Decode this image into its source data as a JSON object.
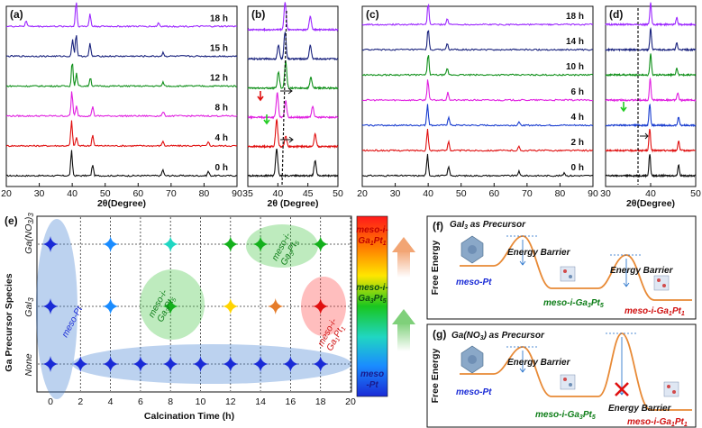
{
  "chart_data": [
    {
      "panel": "(a)",
      "type": "line",
      "title": "",
      "xlabel": "2θ(Degree)",
      "ylabel": "",
      "xlim": [
        20,
        90
      ],
      "xticks": [
        20,
        30,
        40,
        50,
        60,
        70,
        80,
        90
      ],
      "series": [
        {
          "name": "0 h",
          "color": "#111111",
          "peaks": [
            [
              39.8,
              1.0
            ],
            [
              46.2,
              0.45
            ],
            [
              67.5,
              0.25
            ],
            [
              81.3,
              0.18
            ]
          ]
        },
        {
          "name": "4 h",
          "color": "#e01010",
          "peaks": [
            [
              39.8,
              1.0
            ],
            [
              41.3,
              0.35
            ],
            [
              46.2,
              0.45
            ],
            [
              67.5,
              0.2
            ],
            [
              81.3,
              0.15
            ]
          ]
        },
        {
          "name": "8 h",
          "color": "#e020e0",
          "peaks": [
            [
              39.9,
              1.0
            ],
            [
              41.3,
              0.4
            ],
            [
              46.2,
              0.4
            ],
            [
              67.6,
              0.18
            ]
          ]
        },
        {
          "name": "12 h",
          "color": "#10901a",
          "peaks": [
            [
              40.0,
              1.0
            ],
            [
              41.3,
              0.5
            ],
            [
              45.5,
              0.35
            ],
            [
              67.6,
              0.15
            ]
          ]
        },
        {
          "name": "15 h",
          "color": "#1a237e",
          "peaks": [
            [
              40.1,
              0.7
            ],
            [
              41.2,
              0.9
            ],
            [
              45.4,
              0.5
            ],
            [
              67.6,
              0.15
            ]
          ]
        },
        {
          "name": "18 h",
          "color": "#9c27ff",
          "peaks": [
            [
              26.0,
              0.25
            ],
            [
              41.2,
              1.0
            ],
            [
              45.4,
              0.5
            ],
            [
              66.2,
              0.15
            ]
          ]
        }
      ]
    },
    {
      "panel": "(b)",
      "type": "line",
      "xlabel": "2θ (Degree)",
      "xlim": [
        35,
        50
      ],
      "xticks": [
        35,
        40,
        45,
        50
      ],
      "series": [
        {
          "name": "0 h",
          "color": "#111111",
          "peaks": [
            [
              39.8,
              1.0
            ],
            [
              46.2,
              0.55
            ]
          ]
        },
        {
          "name": "4 h",
          "color": "#e01010",
          "peaks": [
            [
              39.8,
              1.0
            ],
            [
              41.3,
              0.4
            ],
            [
              46.2,
              0.45
            ]
          ]
        },
        {
          "name": "8 h",
          "color": "#e020e0",
          "peaks": [
            [
              39.9,
              0.9
            ],
            [
              41.3,
              0.6
            ],
            [
              45.8,
              0.4
            ]
          ]
        },
        {
          "name": "12 h",
          "color": "#10901a",
          "peaks": [
            [
              40.1,
              0.6
            ],
            [
              41.3,
              1.0
            ],
            [
              45.5,
              0.4
            ]
          ]
        },
        {
          "name": "15 h",
          "color": "#1a237e",
          "peaks": [
            [
              40.1,
              0.5
            ],
            [
              41.2,
              1.0
            ],
            [
              45.4,
              0.5
            ]
          ]
        },
        {
          "name": "18 h",
          "color": "#9c27ff",
          "peaks": [
            [
              41.2,
              1.0
            ],
            [
              45.4,
              0.5
            ]
          ]
        }
      ]
    },
    {
      "panel": "(c)",
      "type": "line",
      "xlabel": "",
      "xlim": [
        20,
        90
      ],
      "xticks": [
        20,
        30,
        40,
        50,
        60,
        70,
        80,
        90
      ],
      "series": [
        {
          "name": "0 h",
          "color": "#111111",
          "peaks": [
            [
              39.8,
              1.0
            ],
            [
              46.2,
              0.45
            ],
            [
              67.5,
              0.2
            ],
            [
              81.3,
              0.15
            ]
          ]
        },
        {
          "name": "2 h",
          "color": "#e01010",
          "peaks": [
            [
              39.8,
              1.0
            ],
            [
              46.2,
              0.45
            ],
            [
              67.5,
              0.18
            ]
          ]
        },
        {
          "name": "4 h",
          "color": "#1a3ed0",
          "peaks": [
            [
              39.8,
              1.0
            ],
            [
              46.2,
              0.4
            ],
            [
              67.5,
              0.15
            ]
          ]
        },
        {
          "name": "6 h",
          "color": "#e020e0",
          "peaks": [
            [
              39.9,
              1.0
            ],
            [
              46.0,
              0.35
            ]
          ]
        },
        {
          "name": "10 h",
          "color": "#10901a",
          "peaks": [
            [
              40.0,
              1.0
            ],
            [
              45.8,
              0.3
            ]
          ]
        },
        {
          "name": "14 h",
          "color": "#1a237e",
          "peaks": [
            [
              40.0,
              1.0
            ],
            [
              45.8,
              0.3
            ]
          ]
        },
        {
          "name": "18 h",
          "color": "#9c27ff",
          "peaks": [
            [
              40.0,
              1.0
            ],
            [
              45.8,
              0.3
            ]
          ]
        }
      ]
    },
    {
      "panel": "(d)",
      "type": "line",
      "xlabel": "2θ(Degree)",
      "xlim": [
        30,
        50
      ],
      "xticks": [
        30,
        40,
        50
      ],
      "series": [
        {
          "name": "0 h",
          "color": "#111111",
          "peaks": [
            [
              39.8,
              1.0
            ],
            [
              46.2,
              0.5
            ]
          ]
        },
        {
          "name": "2 h",
          "color": "#e01010",
          "peaks": [
            [
              39.8,
              1.0
            ],
            [
              46.2,
              0.45
            ]
          ]
        },
        {
          "name": "4 h",
          "color": "#1a3ed0",
          "peaks": [
            [
              39.8,
              1.0
            ],
            [
              46.2,
              0.4
            ]
          ]
        },
        {
          "name": "6 h",
          "color": "#e020e0",
          "peaks": [
            [
              39.9,
              1.0
            ],
            [
              46.0,
              0.35
            ]
          ]
        },
        {
          "name": "10 h",
          "color": "#10901a",
          "peaks": [
            [
              40.0,
              1.0
            ],
            [
              45.8,
              0.3
            ]
          ]
        },
        {
          "name": "14 h",
          "color": "#1a237e",
          "peaks": [
            [
              40.0,
              1.0
            ],
            [
              45.8,
              0.3
            ]
          ]
        },
        {
          "name": "18 h",
          "color": "#9c27ff",
          "peaks": [
            [
              40.0,
              1.0
            ],
            [
              45.8,
              0.3
            ]
          ]
        }
      ]
    },
    {
      "panel": "(e)",
      "type": "scatter",
      "xlabel": "Calcination Time (h)",
      "ylabel": "Ga Precursor Species",
      "xlim": [
        -1,
        20
      ],
      "xticks": [
        0,
        2,
        4,
        6,
        8,
        10,
        12,
        14,
        16,
        18,
        20
      ],
      "categories": [
        "None",
        "GaI3",
        "Ga(NO3)3"
      ],
      "points": [
        {
          "x": 0,
          "y": "None",
          "phase": "meso-Pt"
        },
        {
          "x": 2,
          "y": "None",
          "phase": "meso-Pt"
        },
        {
          "x": 4,
          "y": "None",
          "phase": "meso-Pt"
        },
        {
          "x": 6,
          "y": "None",
          "phase": "meso-Pt"
        },
        {
          "x": 8,
          "y": "None",
          "phase": "meso-Pt"
        },
        {
          "x": 10,
          "y": "None",
          "phase": "meso-Pt"
        },
        {
          "x": 12,
          "y": "None",
          "phase": "meso-Pt"
        },
        {
          "x": 14,
          "y": "None",
          "phase": "meso-Pt"
        },
        {
          "x": 16,
          "y": "None",
          "phase": "meso-Pt"
        },
        {
          "x": 18,
          "y": "None",
          "phase": "meso-Pt"
        },
        {
          "x": 0,
          "y": "GaI3",
          "phase": "meso-Pt"
        },
        {
          "x": 4,
          "y": "GaI3",
          "phase": "meso-Pt"
        },
        {
          "x": 8,
          "y": "GaI3",
          "phase": "meso-i-Ga3Pt5"
        },
        {
          "x": 12,
          "y": "GaI3",
          "phase": "intermediate"
        },
        {
          "x": 15,
          "y": "GaI3",
          "phase": "intermediate"
        },
        {
          "x": 18,
          "y": "GaI3",
          "phase": "meso-i-Ga1Pt1"
        },
        {
          "x": 0,
          "y": "Ga(NO3)3",
          "phase": "meso-Pt"
        },
        {
          "x": 4,
          "y": "Ga(NO3)3",
          "phase": "meso-Pt"
        },
        {
          "x": 8,
          "y": "Ga(NO3)3",
          "phase": "intermediate"
        },
        {
          "x": 12,
          "y": "Ga(NO3)3",
          "phase": "meso-i-Ga3Pt5"
        },
        {
          "x": 14,
          "y": "Ga(NO3)3",
          "phase": "meso-i-Ga3Pt5"
        },
        {
          "x": 18,
          "y": "Ga(NO3)3",
          "phase": "meso-i-Ga3Pt5"
        }
      ],
      "annotations": [
        "meso-Pt",
        "meso-i-Ga3Pt5",
        "meso-i-Ga3Pt5",
        "meso-i-Ga1Pt1"
      ]
    }
  ],
  "labels": {
    "a": "(a)",
    "b": "(b)",
    "c": "(c)",
    "d": "(d)",
    "e": "(e)",
    "f": "(f)",
    "g": "(g)",
    "xlab_a": "2θ(Degree)",
    "xlab_b": "2θ (Degree)",
    "xlab_d": "2θ(Degree)",
    "e_x": "Calcination Time (h)",
    "e_y": "Ga Precursor Species",
    "cat_none": "None",
    "cat_gai3": "GaI",
    "cat_ga": "Ga(NO",
    "sub3": "3",
    "close_par": ")",
    "meso_pt": "meso-Pt",
    "meso_i": "meso-i-",
    "ga3pt5": "Ga",
    "pt5": "Pt",
    "five": "5",
    "one": "1",
    "f_title": "GaI",
    "f_title_rest": " as Precursor",
    "g_title": "Ga(NO",
    "g_title_rest": ") as Precursor",
    "free_energy": "Free Energy",
    "energy_barrier": "Energy Barrier",
    "legend_top_a": "meso-i-",
    "legend_top_b": "Ga",
    "legend_mid_a": "meso-i-",
    "legend_mid_b": "Ga",
    "legend_bot_a": "meso",
    "legend_bot_b": "-Pt"
  },
  "colors": {
    "accent_red": "#e01010",
    "green": "#10901a",
    "blue": "#1a3ed0",
    "orange": "#e57c2a"
  }
}
